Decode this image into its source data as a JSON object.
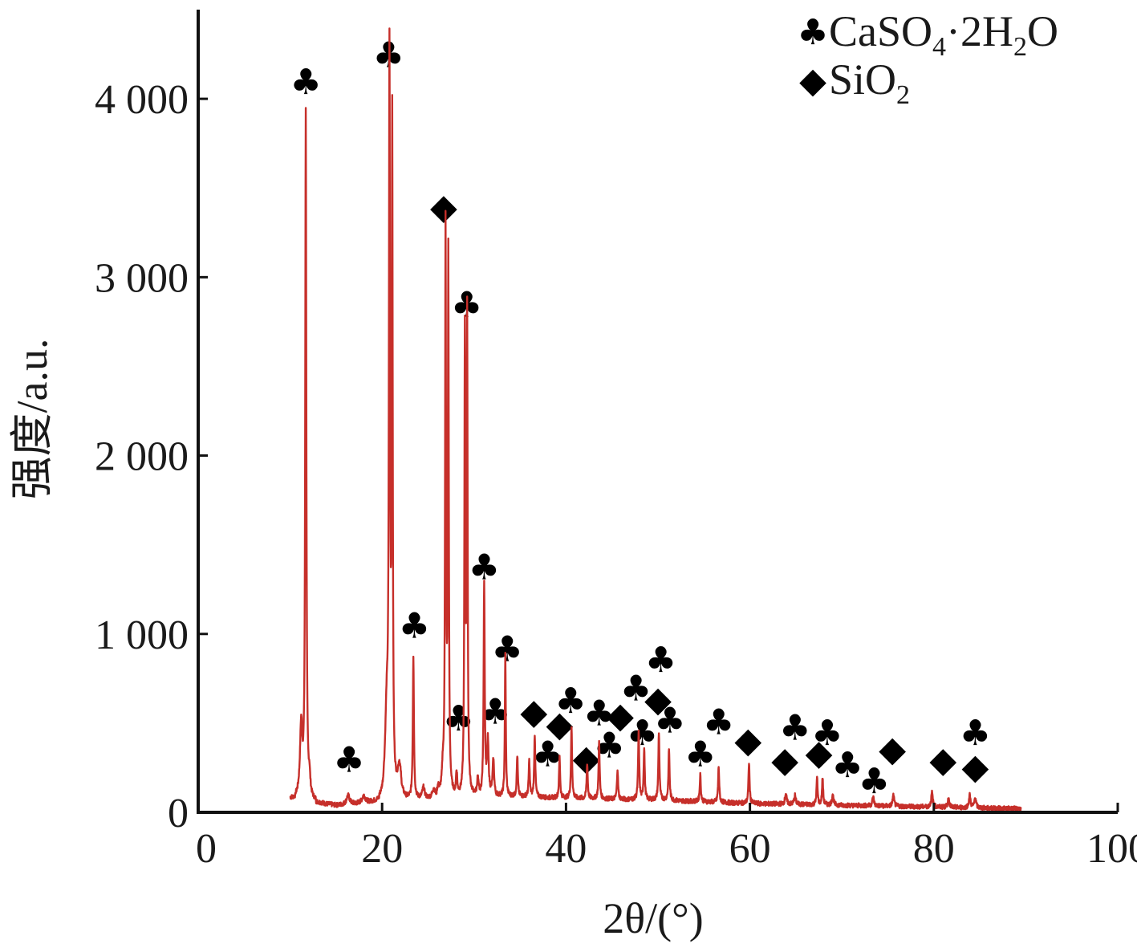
{
  "chart_data": {
    "type": "line",
    "xlabel": "2θ/(°)",
    "ylabel": "强度/a.u.",
    "xlim": [
      0,
      100
    ],
    "ylim": [
      0,
      4500
    ],
    "x_ticks": [
      0,
      20,
      40,
      60,
      80,
      100
    ],
    "x_tick_labels": [
      "0",
      "20",
      "40",
      "60",
      "80",
      "100"
    ],
    "y_ticks": [
      0,
      1000,
      2000,
      3000,
      4000
    ],
    "y_tick_labels": [
      "0",
      "1 000",
      "2 000",
      "3 000",
      "4 000"
    ],
    "grid": false,
    "legend_position": "top-right",
    "line_color": "#c62f2a",
    "legend": [
      {
        "symbol": "♣",
        "parts": [
          [
            "CaSO",
            ""
          ],
          [
            "4",
            "sub"
          ],
          [
            "·2H",
            ""
          ],
          [
            "2",
            "sub"
          ],
          [
            "O",
            ""
          ]
        ]
      },
      {
        "symbol": "◆",
        "parts": [
          [
            "SiO",
            ""
          ],
          [
            "2",
            "sub"
          ]
        ]
      }
    ],
    "baseline": [
      [
        10,
        80
      ],
      [
        15,
        40
      ],
      [
        20,
        60
      ],
      [
        25,
        80
      ],
      [
        30,
        90
      ],
      [
        35,
        90
      ],
      [
        40,
        80
      ],
      [
        50,
        70
      ],
      [
        60,
        50
      ],
      [
        70,
        40
      ],
      [
        80,
        30
      ],
      [
        89.5,
        20
      ]
    ],
    "peaks": [
      [
        11.2,
        400,
        0.3
      ],
      [
        11.7,
        3850,
        0.14
      ],
      [
        12.1,
        100,
        0.2
      ],
      [
        16.3,
        50,
        0.4
      ],
      [
        18.0,
        40,
        0.4
      ],
      [
        20.5,
        450,
        0.4
      ],
      [
        20.8,
        4050,
        0.14
      ],
      [
        21.1,
        3700,
        0.12
      ],
      [
        21.9,
        180,
        0.5
      ],
      [
        23.4,
        800,
        0.14
      ],
      [
        24.5,
        60,
        0.3
      ],
      [
        25.6,
        50,
        0.3
      ],
      [
        26.1,
        50,
        0.3
      ],
      [
        26.6,
        120,
        0.2
      ],
      [
        26.9,
        3150,
        0.12
      ],
      [
        27.2,
        3000,
        0.12
      ],
      [
        28.1,
        130,
        0.2
      ],
      [
        29.0,
        2550,
        0.12
      ],
      [
        29.25,
        2650,
        0.12
      ],
      [
        30.4,
        100,
        0.2
      ],
      [
        31.1,
        1200,
        0.14
      ],
      [
        31.5,
        300,
        0.2
      ],
      [
        32.1,
        200,
        0.2
      ],
      [
        33.4,
        800,
        0.12
      ],
      [
        34.7,
        230,
        0.14
      ],
      [
        36.0,
        200,
        0.14
      ],
      [
        36.6,
        350,
        0.14
      ],
      [
        39.3,
        230,
        0.14
      ],
      [
        40.6,
        400,
        0.14
      ],
      [
        42.3,
        200,
        0.14
      ],
      [
        43.6,
        320,
        0.14
      ],
      [
        45.6,
        170,
        0.14
      ],
      [
        47.9,
        380,
        0.14
      ],
      [
        48.5,
        290,
        0.14
      ],
      [
        50.1,
        380,
        0.14
      ],
      [
        51.2,
        290,
        0.14
      ],
      [
        54.6,
        150,
        0.14
      ],
      [
        56.6,
        200,
        0.14
      ],
      [
        59.9,
        230,
        0.14
      ],
      [
        63.9,
        60,
        0.2
      ],
      [
        64.9,
        50,
        0.2
      ],
      [
        67.3,
        150,
        0.14
      ],
      [
        67.9,
        150,
        0.14
      ],
      [
        69.0,
        60,
        0.2
      ],
      [
        73.4,
        50,
        0.2
      ],
      [
        75.6,
        60,
        0.2
      ],
      [
        79.8,
        80,
        0.2
      ],
      [
        81.6,
        50,
        0.2
      ],
      [
        83.9,
        70,
        0.2
      ],
      [
        84.5,
        60,
        0.2
      ]
    ],
    "annotations": [
      {
        "symbol": "♣",
        "x": 11.7,
        "y": 4100
      },
      {
        "symbol": "♣",
        "x": 20.7,
        "y": 4250
      },
      {
        "symbol": "◆",
        "x": 26.7,
        "y": 3400
      },
      {
        "symbol": "♣",
        "x": 29.2,
        "y": 2850
      },
      {
        "symbol": "♣",
        "x": 31.1,
        "y": 1380
      },
      {
        "symbol": "♣",
        "x": 23.5,
        "y": 1050
      },
      {
        "symbol": "♣",
        "x": 33.6,
        "y": 920
      },
      {
        "symbol": "♣",
        "x": 16.4,
        "y": 300
      },
      {
        "symbol": "♣",
        "x": 28.3,
        "y": 530
      },
      {
        "symbol": "♣",
        "x": 32.3,
        "y": 570
      },
      {
        "symbol": "◆",
        "x": 36.5,
        "y": 570
      },
      {
        "symbol": "♣",
        "x": 38.0,
        "y": 330
      },
      {
        "symbol": "◆",
        "x": 39.3,
        "y": 500
      },
      {
        "symbol": "♣",
        "x": 40.5,
        "y": 630
      },
      {
        "symbol": "◆",
        "x": 42.2,
        "y": 310
      },
      {
        "symbol": "♣",
        "x": 43.6,
        "y": 560
      },
      {
        "symbol": "♣",
        "x": 44.7,
        "y": 380
      },
      {
        "symbol": "◆",
        "x": 45.9,
        "y": 550
      },
      {
        "symbol": "♣",
        "x": 47.6,
        "y": 700
      },
      {
        "symbol": "♣",
        "x": 48.3,
        "y": 450
      },
      {
        "symbol": "♣",
        "x": 50.3,
        "y": 860
      },
      {
        "symbol": "◆",
        "x": 50.0,
        "y": 640
      },
      {
        "symbol": "♣",
        "x": 51.3,
        "y": 520
      },
      {
        "symbol": "♣",
        "x": 54.6,
        "y": 330
      },
      {
        "symbol": "♣",
        "x": 56.6,
        "y": 510
      },
      {
        "symbol": "◆",
        "x": 59.8,
        "y": 410
      },
      {
        "symbol": "◆",
        "x": 63.8,
        "y": 300
      },
      {
        "symbol": "♣",
        "x": 64.9,
        "y": 480
      },
      {
        "symbol": "◆",
        "x": 67.5,
        "y": 340
      },
      {
        "symbol": "♣",
        "x": 68.4,
        "y": 450
      },
      {
        "symbol": "♣",
        "x": 70.6,
        "y": 270
      },
      {
        "symbol": "♣",
        "x": 73.5,
        "y": 180
      },
      {
        "symbol": "◆",
        "x": 75.5,
        "y": 360
      },
      {
        "symbol": "◆",
        "x": 81.0,
        "y": 300
      },
      {
        "symbol": "♣",
        "x": 84.5,
        "y": 450
      },
      {
        "symbol": "◆",
        "x": 84.5,
        "y": 260
      }
    ]
  }
}
